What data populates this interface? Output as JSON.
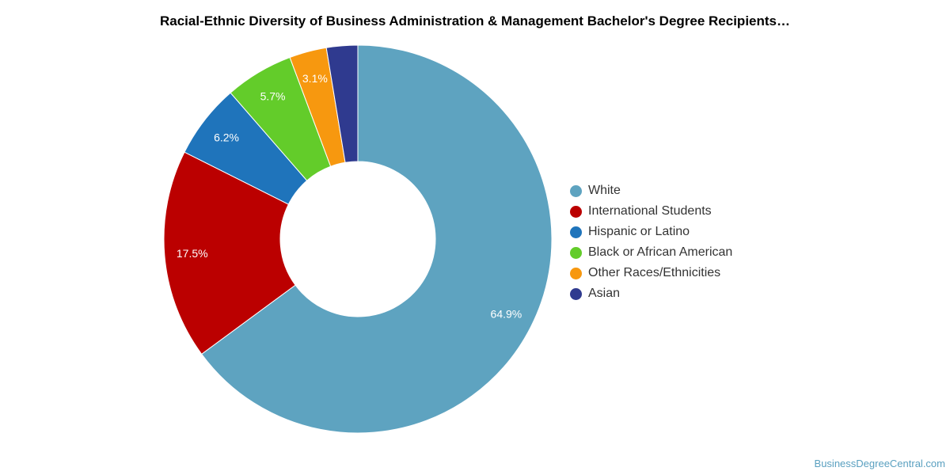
{
  "chart_data": {
    "type": "pie",
    "variant": "donut",
    "title": "Racial-Ethnic Diversity of Business Administration & Management Bachelor's Degree Recipients…",
    "slices": [
      {
        "name": "White",
        "value": 64.9,
        "label": "64.9%",
        "color": "#5ea3c0"
      },
      {
        "name": "International Students",
        "value": 17.5,
        "label": "17.5%",
        "color": "#bb0000"
      },
      {
        "name": "Hispanic or Latino",
        "value": 6.2,
        "label": "6.2%",
        "color": "#1f74bb"
      },
      {
        "name": "Black or African American",
        "value": 5.7,
        "label": "5.7%",
        "color": "#63cc2a"
      },
      {
        "name": "Other Races/Ethnicities",
        "value": 3.1,
        "label": "3.1%",
        "color": "#f7980f"
      },
      {
        "name": "Asian",
        "value": 2.6,
        "label": "",
        "color": "#2f3a8f"
      }
    ],
    "legend_position": "right"
  },
  "source": "BusinessDegreeCentral.com"
}
